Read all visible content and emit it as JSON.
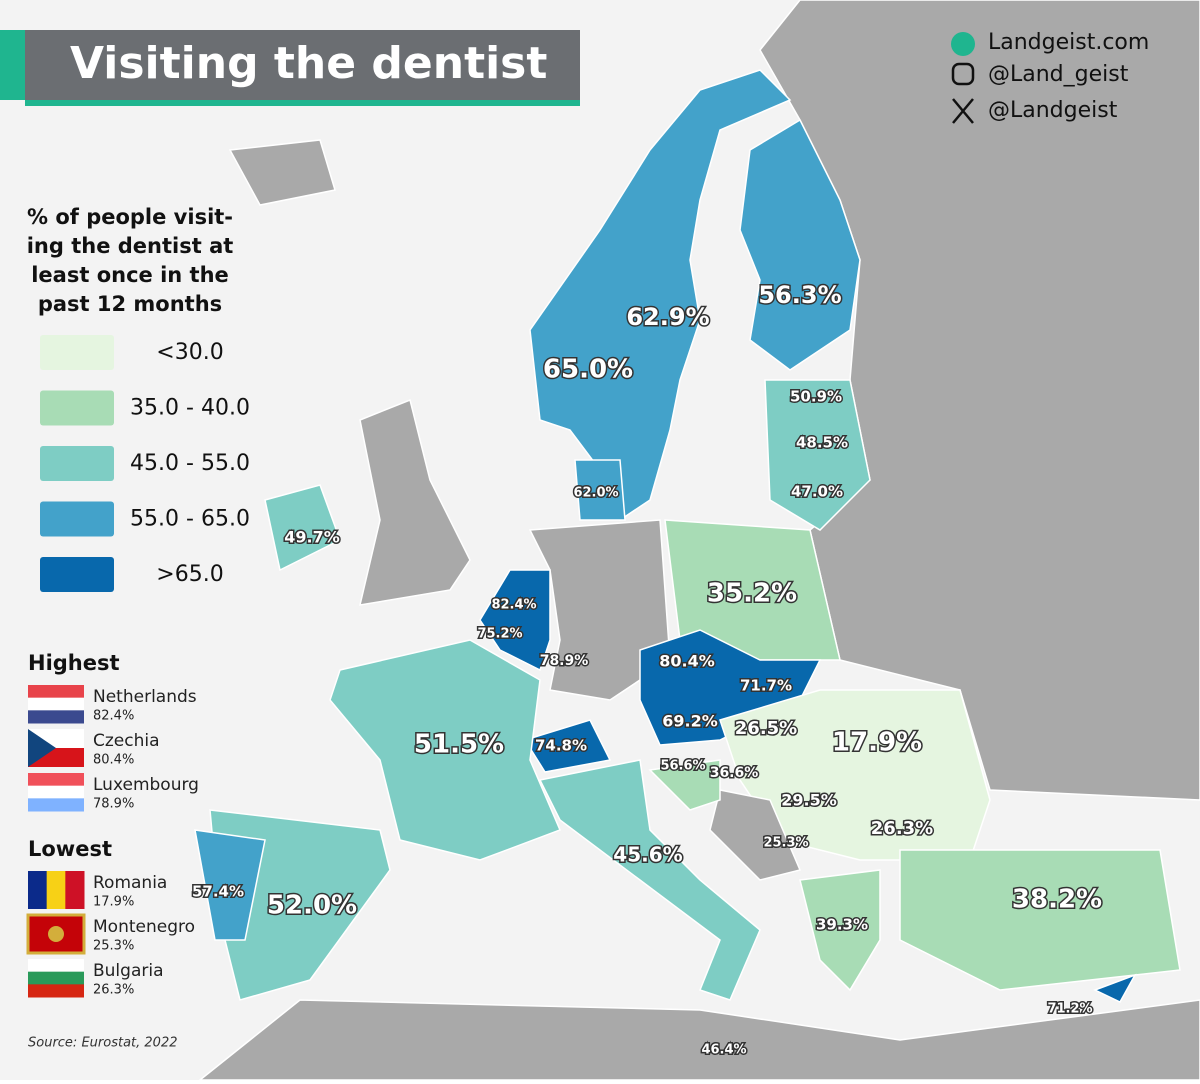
{
  "header": {
    "title": "Visiting the dentist"
  },
  "social": [
    "Landgeist.com",
    "@Land_geist",
    "@Landgeist"
  ],
  "legend": {
    "title_lines": [
      "% of people visit-",
      "ing the dentist at",
      "least once in the",
      "past 12 months"
    ],
    "bins": [
      {
        "label": "<30.0",
        "color": "#e5f5e0"
      },
      {
        "label": "35.0 - 40.0",
        "color": "#a8dcb5"
      },
      {
        "label": "45.0 - 55.0",
        "color": "#7ecdc4"
      },
      {
        "label": "55.0 - 65.0",
        "color": "#43a2ca"
      },
      {
        "label": ">65.0",
        "color": "#0868ac"
      }
    ]
  },
  "highest": {
    "title": "Highest",
    "items": [
      {
        "name": "Netherlands",
        "value": "82.4%"
      },
      {
        "name": "Czechia",
        "value": "80.4%"
      },
      {
        "name": "Luxembourg",
        "value": "78.9%"
      }
    ]
  },
  "lowest": {
    "title": "Lowest",
    "items": [
      {
        "name": "Romania",
        "value": "17.9%"
      },
      {
        "name": "Montenegro",
        "value": "25.3%"
      },
      {
        "name": "Bulgaria",
        "value": "26.3%"
      }
    ]
  },
  "source": "Source: Eurostat, 2022",
  "map_labels": [
    "65.0%",
    "62.9%",
    "56.3%",
    "50.9%",
    "48.5%",
    "47.0%",
    "62.0%",
    "49.7%",
    "35.2%",
    "82.4%",
    "75.2%",
    "78.9%",
    "80.4%",
    "71.7%",
    "69.2%",
    "26.5%",
    "17.9%",
    "51.5%",
    "74.8%",
    "56.6%",
    "36.6%",
    "29.5%",
    "26.3%",
    "25.3%",
    "45.6%",
    "57.4%",
    "52.0%",
    "38.2%",
    "39.3%",
    "71.2%",
    "46.4%"
  ]
}
